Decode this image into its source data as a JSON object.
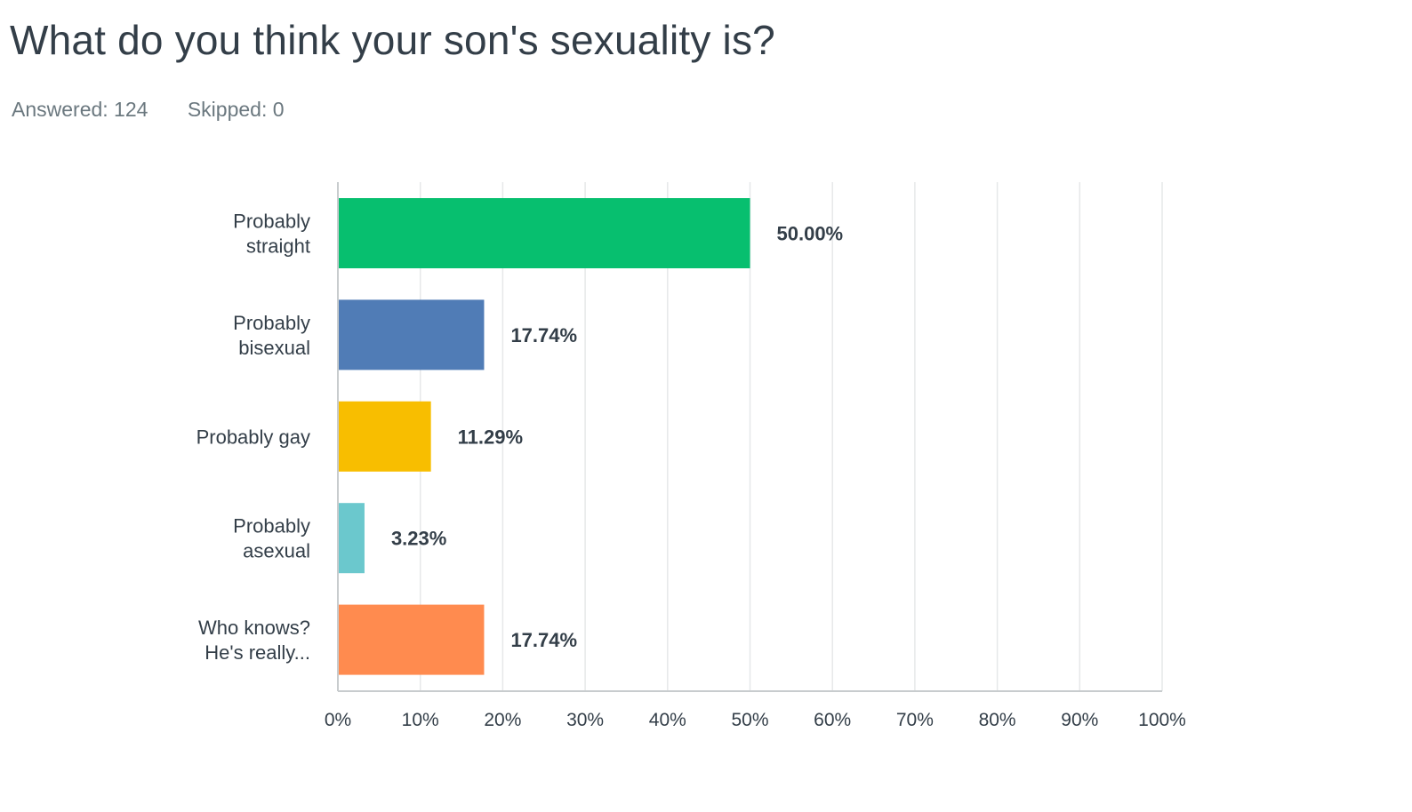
{
  "question": {
    "title": "What do you think your son's sexuality is?"
  },
  "stats": {
    "answered": "Answered: 124",
    "skipped": "Skipped: 0"
  },
  "chart_data": {
    "type": "bar",
    "orientation": "horizontal",
    "categories": [
      [
        "Probably",
        "straight"
      ],
      [
        "Probably",
        "bisexual"
      ],
      [
        "Probably gay"
      ],
      [
        "Probably",
        "asexual"
      ],
      [
        "Who knows?",
        "He's really..."
      ]
    ],
    "values": [
      50.0,
      17.74,
      11.29,
      3.23,
      17.74
    ],
    "value_labels": [
      "50.00%",
      "17.74%",
      "11.29%",
      "3.23%",
      "17.74%"
    ],
    "colors": [
      "#07bf6f",
      "#507cb6",
      "#f8be00",
      "#6bc8cd",
      "#ff8b4f"
    ],
    "xlim": [
      0,
      100
    ],
    "xticks": [
      "0%",
      "10%",
      "20%",
      "30%",
      "40%",
      "50%",
      "60%",
      "70%",
      "80%",
      "90%",
      "100%"
    ],
    "grid": true,
    "gridColor": "#e6e8e9",
    "axisColor": "#c8ccce"
  }
}
